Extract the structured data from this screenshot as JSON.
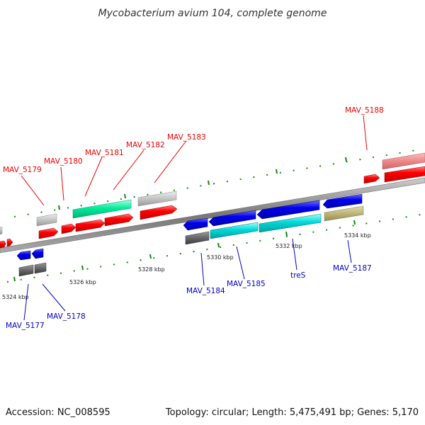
{
  "title": "Mycobacterium avium 104, complete genome",
  "footer": {
    "accession": "Accession: NC_008595",
    "summary": "Topology: circular; Length: 5,475,491 bp; Genes: 5,170"
  },
  "scale": {
    "tick_labels": [
      "5324 kbp",
      "5326 kbp",
      "5328 kbp",
      "5330 kbp",
      "5332 kbp",
      "5334 kbp"
    ]
  },
  "genes": {
    "MAV_5177": "MAV_5177",
    "MAV_5178": "MAV_5178",
    "MAV_5179": "MAV_5179",
    "MAV_5180": "MAV_5180",
    "MAV_5181": "MAV_5181",
    "MAV_5182": "MAV_5182",
    "MAV_5183": "MAV_5183",
    "MAV_5184": "MAV_5184",
    "MAV_5185": "MAV_5185",
    "treS": "treS",
    "MAV_5187": "MAV_5187",
    "MAV_5188": "MAV_5188"
  },
  "colors": {
    "forward_strand": "#ff0000",
    "reverse_strand": "#0000ee",
    "rna_like": "#00ee99",
    "cyan_feature": "#00cccc",
    "olive_feature": "#b8b070",
    "grey_feature": "#bbbbbb",
    "dark_grey_feature": "#555555",
    "tick_color": "#118811",
    "backbone": "#888888"
  }
}
